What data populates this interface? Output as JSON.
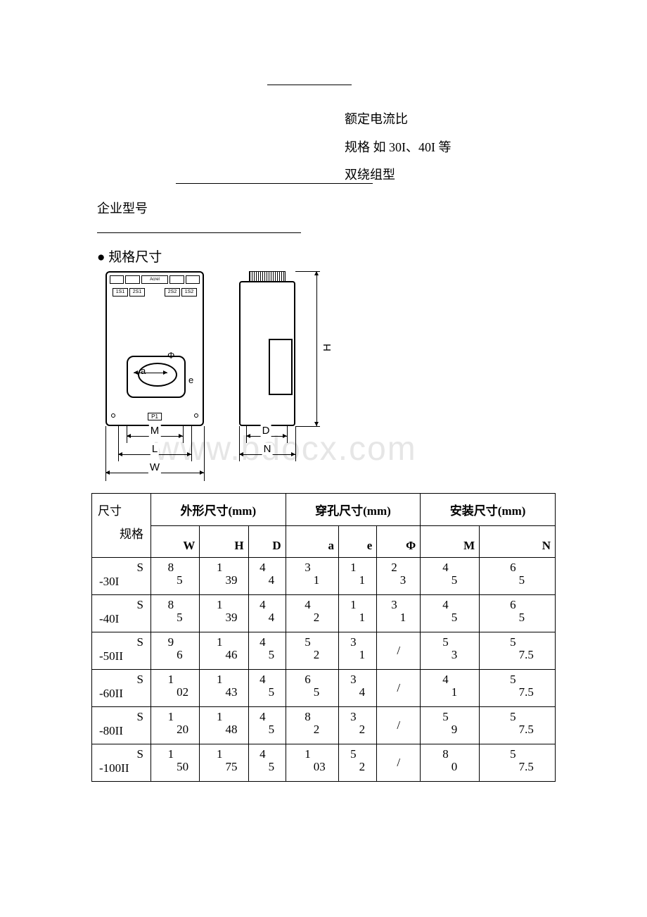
{
  "labels": {
    "rated_current_ratio": "额定电流比",
    "spec_examples": "规格  如 30I、40I 等",
    "double_winding": "双绕组型",
    "company_model": "企业型号",
    "spec_dims_title": "● 规格尺寸"
  },
  "watermark": "www.bdocx.com",
  "diagram": {
    "dims": {
      "M": "M",
      "L": "L",
      "W": "W",
      "D": "D",
      "N": "N",
      "H": "H",
      "a": "a",
      "e": "e",
      "phi": "Φ"
    },
    "terminals": [
      "1S1",
      "2S1",
      "2S2",
      "1S2"
    ],
    "p1": "P1",
    "brand": "Acrel"
  },
  "table": {
    "corner_top": "尺寸",
    "corner_bottom": "规格",
    "groups": {
      "outer": "外形尺寸(mm)",
      "hole": "穿孔尺寸(mm)",
      "mount": "安装尺寸(mm)"
    },
    "cols": [
      "W",
      "H",
      "D",
      "a",
      "e",
      "Φ",
      "M",
      "N"
    ],
    "rows": [
      {
        "model": "S-30I",
        "W": [
          "8",
          "5"
        ],
        "H": [
          "1",
          "39"
        ],
        "D": [
          "4",
          "4"
        ],
        "a": [
          "3",
          "1"
        ],
        "e": [
          "1",
          "1"
        ],
        "Phi": [
          "2",
          "3"
        ],
        "M": [
          "4",
          "5"
        ],
        "N": [
          "6",
          "5"
        ]
      },
      {
        "model": "S-40I",
        "W": [
          "8",
          "5"
        ],
        "H": [
          "1",
          "39"
        ],
        "D": [
          "4",
          "4"
        ],
        "a": [
          "4",
          "2"
        ],
        "e": [
          "1",
          "1"
        ],
        "Phi": [
          "3",
          "1"
        ],
        "M": [
          "4",
          "5"
        ],
        "N": [
          "6",
          "5"
        ]
      },
      {
        "model": "S-50II",
        "W": [
          "9",
          "6"
        ],
        "H": [
          "1",
          "46"
        ],
        "D": [
          "4",
          "5"
        ],
        "a": [
          "5",
          "2"
        ],
        "e": [
          "3",
          "1"
        ],
        "Phi": [
          "/"
        ],
        "M": [
          "5",
          "3"
        ],
        "N": [
          "5",
          "7.5"
        ]
      },
      {
        "model": "S-60II",
        "W": [
          "1",
          "02"
        ],
        "H": [
          "1",
          "43"
        ],
        "D": [
          "4",
          "5"
        ],
        "a": [
          "6",
          "5"
        ],
        "e": [
          "3",
          "4"
        ],
        "Phi": [
          "/"
        ],
        "M": [
          "4",
          "1"
        ],
        "N": [
          "5",
          "7.5"
        ]
      },
      {
        "model": "S-80II",
        "W": [
          "1",
          "20"
        ],
        "H": [
          "1",
          "48"
        ],
        "D": [
          "4",
          "5"
        ],
        "a": [
          "8",
          "2"
        ],
        "e": [
          "3",
          "2"
        ],
        "Phi": [
          "/"
        ],
        "M": [
          "5",
          "9"
        ],
        "N": [
          "5",
          "7.5"
        ]
      },
      {
        "model": "S-100II",
        "W": [
          "1",
          "50"
        ],
        "H": [
          "1",
          "75"
        ],
        "D": [
          "4",
          "5"
        ],
        "a": [
          "1",
          "03"
        ],
        "e": [
          "5",
          "2"
        ],
        "Phi": [
          "/"
        ],
        "M": [
          "8",
          "0"
        ],
        "N": [
          "5",
          "7.5"
        ]
      }
    ]
  }
}
